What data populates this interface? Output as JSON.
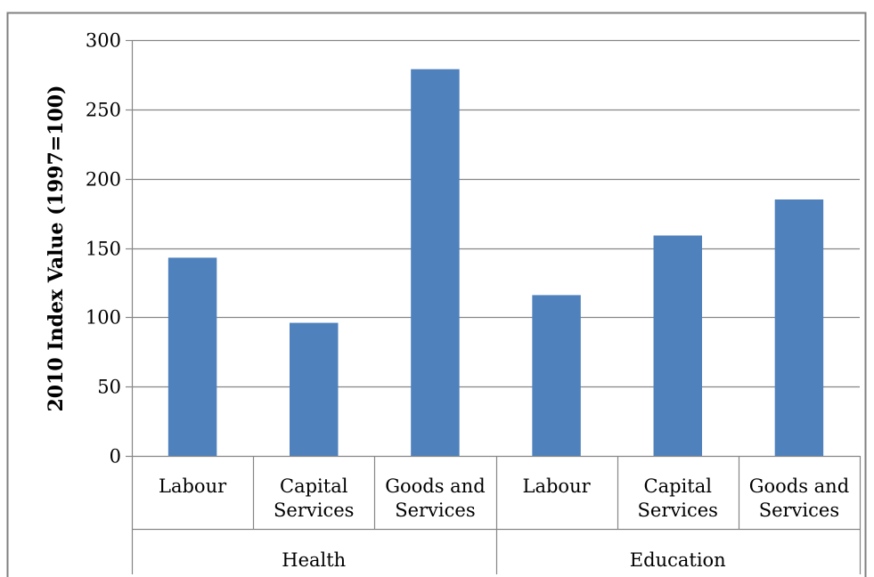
{
  "chart_data": {
    "type": "bar",
    "categories": [
      "Labour",
      "Capital Services",
      "Goods and Services",
      "Labour",
      "Capital Services",
      "Goods and Services"
    ],
    "category_lines": [
      [
        "Labour"
      ],
      [
        "Capital",
        "Services"
      ],
      [
        "Goods and",
        "Services"
      ],
      [
        "Labour"
      ],
      [
        "Capital",
        "Services"
      ],
      [
        "Goods and",
        "Services"
      ]
    ],
    "groups": [
      {
        "label": "Health",
        "span": [
          0,
          2
        ]
      },
      {
        "label": "Education",
        "span": [
          3,
          5
        ]
      }
    ],
    "values": [
      143,
      96,
      279,
      116,
      159,
      185
    ],
    "ylabel": "2010 Index Value  (1997=100)",
    "ylim": [
      0,
      300
    ],
    "yticks": [
      0,
      50,
      100,
      150,
      200,
      250,
      300
    ],
    "grid": true,
    "colors": {
      "bar": "#4f81bd",
      "grid": "#868686",
      "axis": "#868686",
      "border": "#808080"
    }
  }
}
